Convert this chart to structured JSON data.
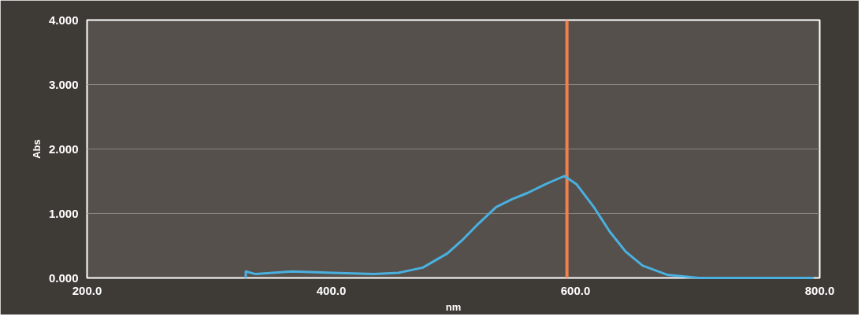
{
  "chart_data": {
    "type": "line",
    "xlabel": "nm",
    "ylabel": "Abs",
    "x": [
      330,
      330,
      338,
      368,
      401,
      435,
      455,
      475,
      495,
      508,
      521,
      535,
      548,
      561,
      575,
      581,
      591,
      601,
      615,
      628,
      641,
      655,
      675,
      701,
      795
    ],
    "series": [
      {
        "color": "#4ab0e0",
        "values": [
          0.0,
          0.1,
          0.06,
          0.1,
          0.08,
          0.06,
          0.08,
          0.16,
          0.38,
          0.6,
          0.85,
          1.1,
          1.22,
          1.32,
          1.45,
          1.5,
          1.58,
          1.45,
          1.1,
          0.72,
          0.41,
          0.19,
          0.05,
          0.0,
          0.0
        ]
      }
    ],
    "xlim": [
      200,
      800
    ],
    "ylim": [
      0,
      4
    ],
    "xticks": [
      {
        "value": 200,
        "label": "200.0"
      },
      {
        "value": 400,
        "label": "400.0"
      },
      {
        "value": 600,
        "label": "600.0"
      },
      {
        "value": 800,
        "label": "800.0"
      }
    ],
    "yticks": [
      {
        "value": 0,
        "label": "0.000"
      },
      {
        "value": 1,
        "label": "1.000"
      },
      {
        "value": 2,
        "label": "2.000"
      },
      {
        "value": 3,
        "label": "3.000"
      },
      {
        "value": 4,
        "label": "4.000"
      }
    ],
    "ref_lines": [
      {
        "axis": "x",
        "value": 593,
        "color": "#f08050"
      }
    ],
    "grid": "y"
  }
}
